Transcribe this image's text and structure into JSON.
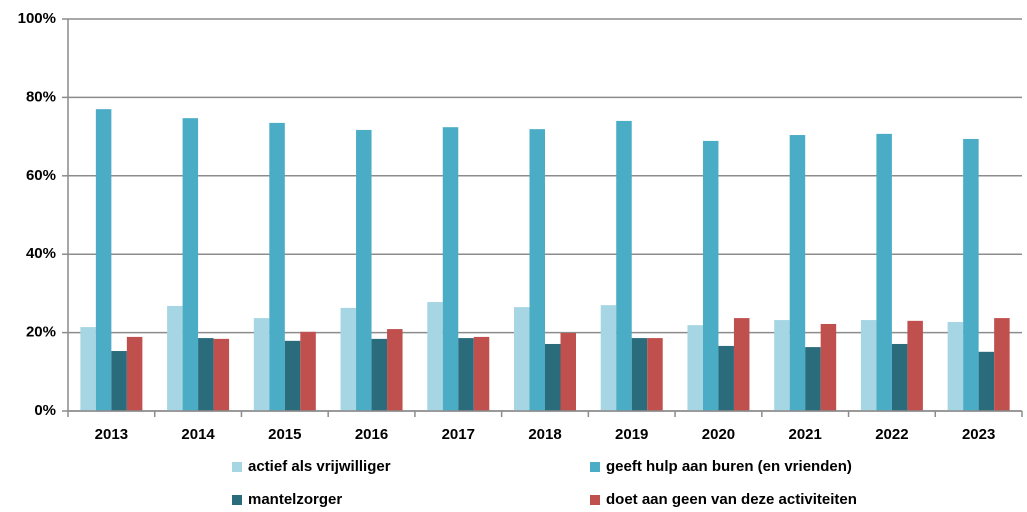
{
  "chart_data": {
    "type": "bar",
    "categories": [
      "2013",
      "2014",
      "2015",
      "2016",
      "2017",
      "2018",
      "2019",
      "2020",
      "2021",
      "2022",
      "2023"
    ],
    "series": [
      {
        "name": "actief als vrijwilliger",
        "color": "#a6d6e3",
        "values": [
          21.4,
          26.8,
          23.7,
          26.3,
          27.8,
          26.5,
          27,
          21.9,
          23.2,
          23.2,
          22.7
        ]
      },
      {
        "name": "geeft hulp aan buren (en vrienden)",
        "color": "#4bacc6",
        "values": [
          77,
          74.7,
          73.5,
          71.7,
          72.4,
          71.9,
          74,
          68.9,
          70.4,
          70.7,
          69.4
        ]
      },
      {
        "name": "mantelzorger",
        "color": "#2a6b7c",
        "values": [
          15.3,
          18.6,
          17.9,
          18.4,
          18.6,
          17.1,
          18.6,
          16.6,
          16.3,
          17.1,
          15.1
        ]
      },
      {
        "name": "doet aan geen van deze activiteiten",
        "color": "#c0504d",
        "values": [
          18.9,
          18.4,
          20.2,
          20.9,
          18.9,
          19.9,
          18.6,
          23.7,
          22.2,
          23,
          23.7
        ]
      }
    ],
    "ylim": [
      0,
      100
    ],
    "yticks": [
      {
        "value": 0,
        "label": "0%"
      },
      {
        "value": 20,
        "label": "20%"
      },
      {
        "value": 40,
        "label": "40%"
      },
      {
        "value": 60,
        "label": "60%"
      },
      {
        "value": 80,
        "label": "80%"
      },
      {
        "value": 100,
        "label": "100%"
      }
    ],
    "grid": true,
    "legend": "bottom"
  }
}
